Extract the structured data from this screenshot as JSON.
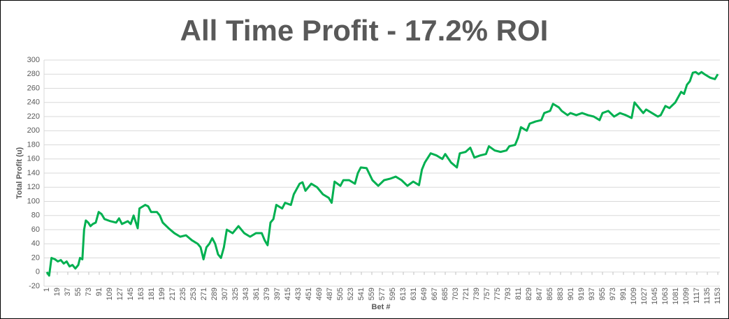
{
  "chart_data": {
    "type": "line",
    "title": "All Time Profit - 17.2% ROI",
    "y_label": "Total Profit (u)",
    "x_label": "Bet #",
    "color": "#00b050",
    "grid": true,
    "xlim": [
      1,
      1153
    ],
    "xticks": [
      1,
      19,
      37,
      55,
      73,
      91,
      109,
      127,
      145,
      163,
      181,
      199,
      217,
      235,
      253,
      271,
      289,
      307,
      325,
      343,
      361,
      379,
      397,
      415,
      433,
      451,
      469,
      487,
      505,
      523,
      541,
      559,
      577,
      595,
      613,
      631,
      649,
      667,
      685,
      703,
      721,
      739,
      757,
      775,
      793,
      811,
      829,
      847,
      865,
      883,
      901,
      919,
      937,
      955,
      973,
      991,
      1009,
      1027,
      1045,
      1063,
      1081,
      1099,
      1117,
      1135,
      1153
    ],
    "ylim": [
      -20,
      300
    ],
    "yticks": [
      -20,
      0,
      20,
      40,
      60,
      80,
      100,
      120,
      140,
      160,
      180,
      200,
      220,
      240,
      260,
      280,
      300
    ],
    "x": [
      1,
      5,
      9,
      15,
      20,
      25,
      30,
      35,
      40,
      45,
      50,
      55,
      58,
      62,
      65,
      68,
      72,
      76,
      80,
      85,
      90,
      95,
      100,
      110,
      120,
      125,
      130,
      140,
      145,
      150,
      157,
      160,
      170,
      175,
      180,
      190,
      195,
      200,
      210,
      220,
      230,
      240,
      250,
      260,
      265,
      270,
      275,
      280,
      285,
      290,
      295,
      300,
      305,
      310,
      320,
      330,
      340,
      350,
      360,
      370,
      375,
      380,
      385,
      390,
      395,
      405,
      410,
      420,
      425,
      435,
      440,
      445,
      450,
      455,
      465,
      475,
      485,
      490,
      495,
      505,
      510,
      520,
      530,
      535,
      540,
      550,
      560,
      570,
      580,
      590,
      600,
      610,
      620,
      630,
      640,
      645,
      650,
      660,
      670,
      680,
      685,
      695,
      705,
      710,
      720,
      728,
      735,
      745,
      755,
      760,
      770,
      780,
      790,
      795,
      805,
      810,
      815,
      825,
      830,
      840,
      850,
      855,
      865,
      870,
      880,
      885,
      895,
      900,
      910,
      920,
      930,
      940,
      950,
      955,
      965,
      975,
      985,
      995,
      1005,
      1010,
      1020,
      1025,
      1030,
      1040,
      1050,
      1055,
      1063,
      1070,
      1080,
      1090,
      1095,
      1100,
      1105,
      1110,
      1115,
      1120,
      1125,
      1130,
      1140,
      1148,
      1153
    ],
    "values": [
      0,
      -5,
      20,
      18,
      15,
      17,
      12,
      15,
      8,
      10,
      5,
      10,
      20,
      18,
      60,
      73,
      70,
      65,
      68,
      70,
      85,
      82,
      75,
      72,
      70,
      76,
      68,
      72,
      68,
      80,
      62,
      90,
      95,
      93,
      85,
      85,
      80,
      70,
      62,
      55,
      50,
      52,
      45,
      40,
      35,
      18,
      35,
      40,
      48,
      40,
      25,
      20,
      35,
      60,
      55,
      65,
      55,
      50,
      55,
      55,
      45,
      38,
      70,
      75,
      95,
      90,
      98,
      95,
      110,
      125,
      127,
      115,
      120,
      125,
      120,
      110,
      105,
      98,
      128,
      122,
      130,
      130,
      125,
      140,
      148,
      147,
      130,
      122,
      130,
      132,
      135,
      130,
      122,
      128,
      123,
      145,
      155,
      168,
      165,
      160,
      167,
      155,
      148,
      168,
      170,
      176,
      162,
      165,
      167,
      178,
      172,
      170,
      172,
      178,
      180,
      190,
      205,
      200,
      210,
      213,
      215,
      225,
      228,
      238,
      233,
      228,
      222,
      225,
      222,
      225,
      222,
      220,
      215,
      225,
      228,
      220,
      225,
      222,
      218,
      240,
      230,
      225,
      230,
      225,
      220,
      222,
      235,
      232,
      240,
      255,
      252,
      265,
      270,
      282,
      283,
      280,
      283,
      280,
      275,
      273,
      280
    ]
  }
}
